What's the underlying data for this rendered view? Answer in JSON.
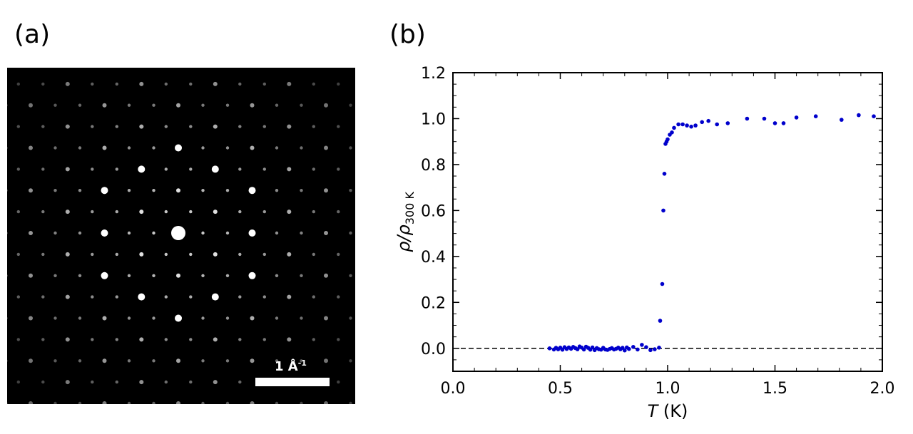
{
  "panels": {
    "a": {
      "label": "(a)",
      "scalebar_label": "1 Å",
      "scalebar_exponent": "-1"
    },
    "b": {
      "label": "(b)"
    }
  },
  "chart_data": {
    "type": "scatter",
    "xlabel_italic": "T",
    "xlabel_unit": " (K)",
    "ylabel_main": "ρ/ρ",
    "ylabel_sub": "300 K",
    "xlim": [
      0.0,
      2.0
    ],
    "ylim": [
      -0.1,
      1.2
    ],
    "xticks": [
      "0.0",
      "0.5",
      "1.0",
      "1.5",
      "2.0"
    ],
    "yticks": [
      "0.0",
      "0.2",
      "0.4",
      "0.6",
      "0.8",
      "1.0",
      "1.2"
    ],
    "reference_line": {
      "y": 0.0,
      "style": "dashed"
    },
    "marker_color": "#0000cc",
    "series": [
      {
        "x": [
          0.45,
          0.47,
          0.48,
          0.49,
          0.5,
          0.51,
          0.52,
          0.53,
          0.54,
          0.55,
          0.56,
          0.57,
          0.58,
          0.59,
          0.6,
          0.61,
          0.62,
          0.63,
          0.64,
          0.65,
          0.66,
          0.67,
          0.68,
          0.69,
          0.7,
          0.71,
          0.72,
          0.73,
          0.74,
          0.75,
          0.76,
          0.77,
          0.78,
          0.79,
          0.8,
          0.81,
          0.82,
          0.84,
          0.86,
          0.88,
          0.9,
          0.92,
          0.94,
          0.96,
          0.965,
          0.975,
          0.98,
          0.985,
          0.99,
          0.995,
          1.0,
          1.01,
          1.02,
          1.03,
          1.05,
          1.07,
          1.09,
          1.11,
          1.13,
          1.16,
          1.19,
          1.23,
          1.28,
          1.37,
          1.45,
          1.5,
          1.54,
          1.6,
          1.69,
          1.81,
          1.89,
          1.96
        ],
        "y": [
          0.0,
          -0.005,
          0.002,
          -0.004,
          0.003,
          -0.006,
          0.005,
          -0.003,
          0.004,
          -0.002,
          0.006,
          0.001,
          -0.004,
          0.008,
          0.003,
          -0.005,
          0.007,
          0.002,
          -0.006,
          0.004,
          -0.008,
          0.001,
          -0.004,
          -0.006,
          0.002,
          -0.005,
          -0.007,
          -0.003,
          0.001,
          -0.005,
          -0.002,
          0.003,
          -0.004,
          0.002,
          -0.009,
          0.004,
          -0.003,
          0.006,
          -0.005,
          0.015,
          0.005,
          -0.008,
          -0.004,
          0.003,
          0.12,
          0.28,
          0.6,
          0.76,
          0.89,
          0.9,
          0.91,
          0.93,
          0.94,
          0.96,
          0.975,
          0.975,
          0.97,
          0.965,
          0.97,
          0.985,
          0.99,
          0.975,
          0.98,
          1.0,
          1.0,
          0.98,
          0.98,
          1.005,
          1.01,
          0.995,
          1.015,
          1.01
        ]
      }
    ]
  }
}
